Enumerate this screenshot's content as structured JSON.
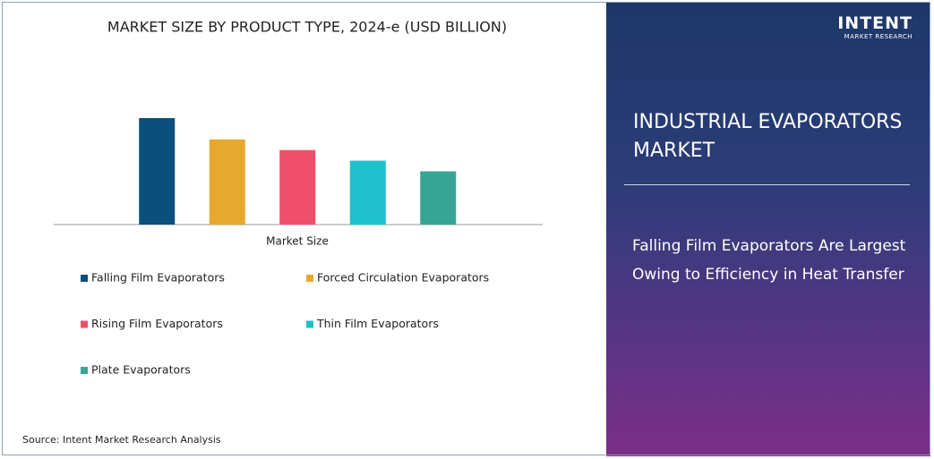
{
  "chart_data": {
    "type": "bar",
    "title": "MARKET SIZE BY PRODUCT TYPE, 2024-e (USD BILLION)",
    "xlabel": "Market Size",
    "categories": [
      "Falling Film Evaporators",
      "Forced Circulation Evaporators",
      "Rising Film Evaporators",
      "Thin Film Evaporators",
      "Plate Evaporators"
    ],
    "values": [
      2.0,
      1.6,
      1.4,
      1.2,
      1.0
    ],
    "colors": [
      "#0b4f7c",
      "#e6a82e",
      "#ef4f6b",
      "#1fc0cc",
      "#36a596"
    ],
    "source": "Source: Intent Market Research Analysis"
  },
  "logo": {
    "name": "INTENT",
    "sub": "MARKET RESEARCH"
  },
  "panel": {
    "title": "INDUSTRIAL EVAPORATORS MARKET",
    "headline": "Falling Film Evaporators Are Largest Owing to Efficiency in Heat Transfer"
  }
}
